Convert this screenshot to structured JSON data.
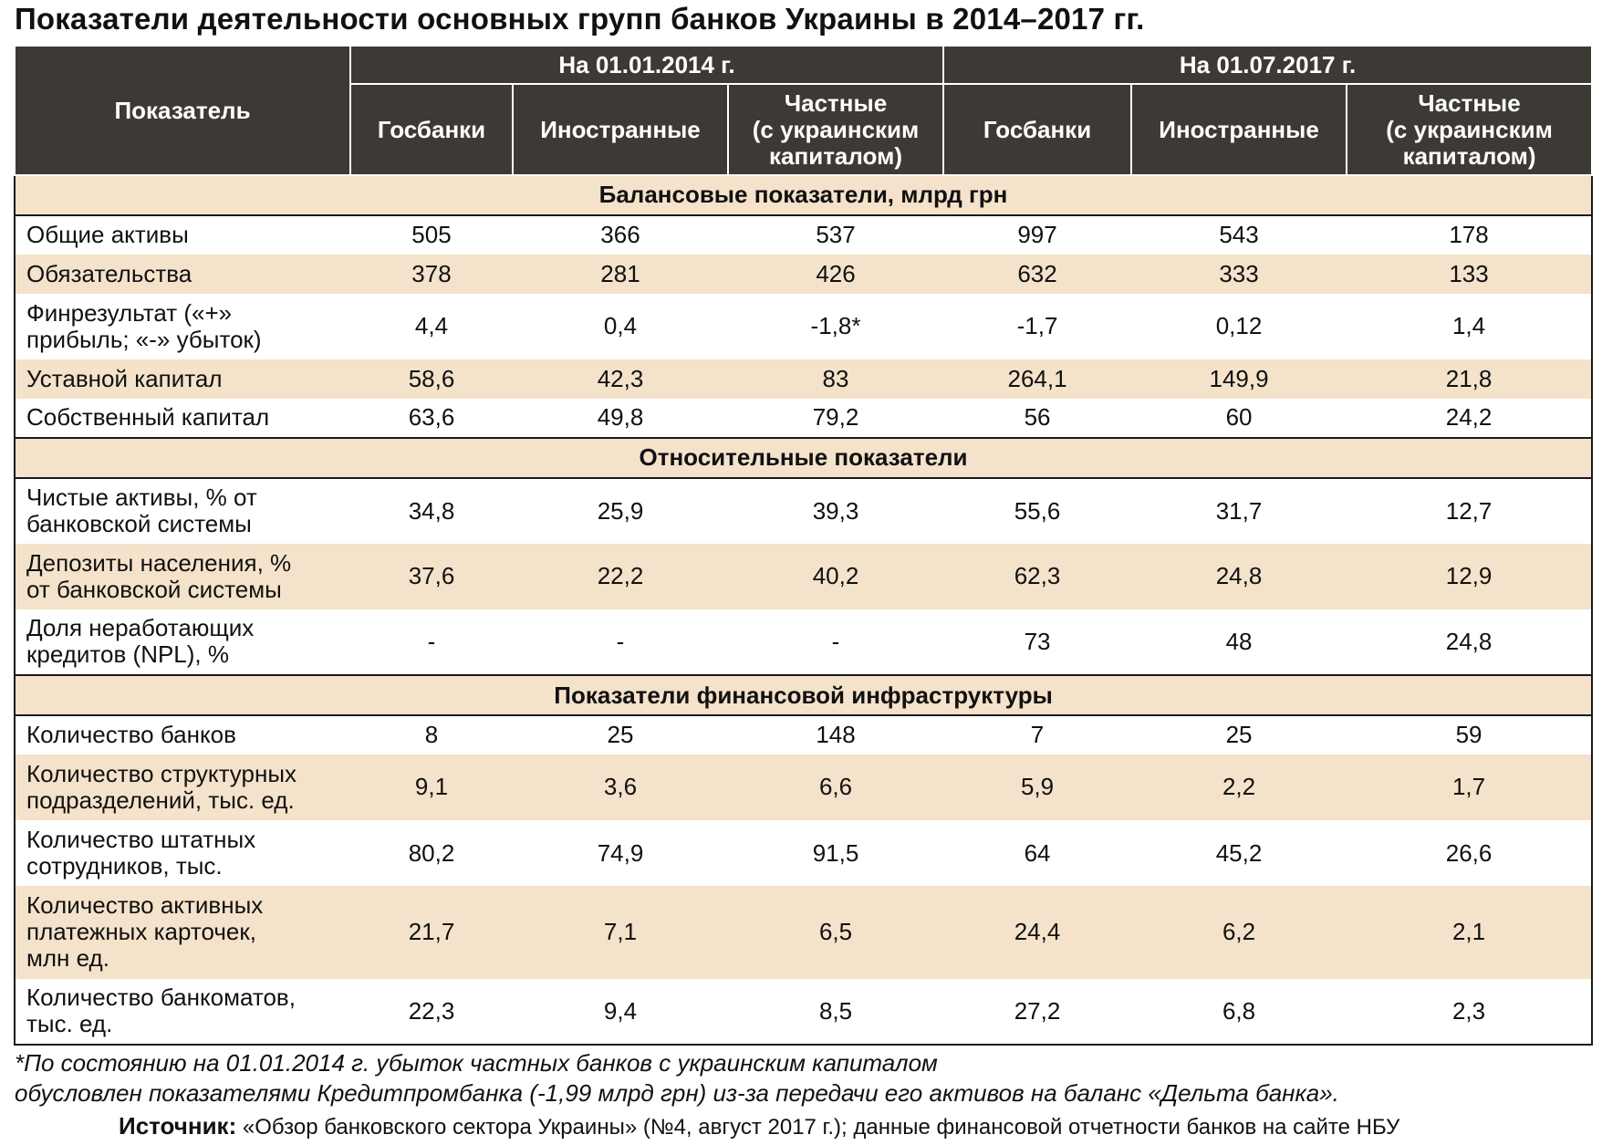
{
  "title": "Показатели деятельности основных групп банков Украины в 2014–2017 гг.",
  "header": {
    "indicator": "Показатель",
    "periods": [
      "На 01.01.2014 г.",
      "На 01.07.2017 г."
    ],
    "groups": [
      "Госбанки",
      "Иностранные",
      "Частные\n(с украинским\nкапиталом)",
      "Госбанки",
      "Иностранные",
      "Частные\n(с украинским\nкапиталом)"
    ]
  },
  "sections": [
    {
      "title": "Балансовые показатели, млрд грн",
      "rows": [
        {
          "label": "Общие активы",
          "values": [
            "505",
            "366",
            "537",
            "997",
            "543",
            "178"
          ]
        },
        {
          "label": "Обязательства",
          "values": [
            "378",
            "281",
            "426",
            "632",
            "333",
            "133"
          ]
        },
        {
          "label": "Финрезультат («+»\nприбыль; «-» убыток)",
          "values": [
            "4,4",
            "0,4",
            "-1,8*",
            "-1,7",
            "0,12",
            "1,4"
          ]
        },
        {
          "label": "Уставной капитал",
          "values": [
            "58,6",
            "42,3",
            "83",
            "264,1",
            "149,9",
            "21,8"
          ]
        },
        {
          "label": "Собственный капитал",
          "values": [
            "63,6",
            "49,8",
            "79,2",
            "56",
            "60",
            "24,2"
          ]
        }
      ]
    },
    {
      "title": "Относительные показатели",
      "rows": [
        {
          "label": "Чистые активы, % от\nбанковской системы",
          "values": [
            "34,8",
            "25,9",
            "39,3",
            "55,6",
            "31,7",
            "12,7"
          ]
        },
        {
          "label": "Депозиты населения, %\nот банковской системы",
          "values": [
            "37,6",
            "22,2",
            "40,2",
            "62,3",
            "24,8",
            "12,9"
          ]
        },
        {
          "label": "Доля неработающих\nкредитов (NPL), %",
          "values": [
            "-",
            "-",
            "-",
            "73",
            "48",
            "24,8"
          ]
        }
      ]
    },
    {
      "title": "Показатели финансовой инфраструктуры",
      "rows": [
        {
          "label": "Количество банков",
          "values": [
            "8",
            "25",
            "148",
            "7",
            "25",
            "59"
          ]
        },
        {
          "label": "Количество структурных\nподразделений, тыс. ед.",
          "values": [
            "9,1",
            "3,6",
            "6,6",
            "5,9",
            "2,2",
            "1,7"
          ]
        },
        {
          "label": "Количество штатных\nсотрудников, тыс.",
          "values": [
            "80,2",
            "74,9",
            "91,5",
            "64",
            "45,2",
            "26,6"
          ]
        },
        {
          "label": "Количество активных\nплатежных карточек,\nмлн ед.",
          "values": [
            "21,7",
            "7,1",
            "6,5",
            "24,4",
            "6,2",
            "2,1"
          ]
        },
        {
          "label": "Количество банкоматов,\nтыс. ед.",
          "values": [
            "22,3",
            "9,4",
            "8,5",
            "27,2",
            "6,8",
            "2,3"
          ]
        }
      ]
    }
  ],
  "footnote": {
    "line1": "*По состоянию на 01.01.2014 г. убыток частных банков с украинским капиталом",
    "line2": "обусловлен показателями Кредитпромбанка (-1,99 млрд грн) из-за передачи его активов на баланс «Дельта банка»."
  },
  "source": {
    "label": "Источник:",
    "text": "«Обзор банковского сектора Украины» (№4, август 2017 г.); данные финансовой отчетности банков на сайте НБУ"
  }
}
